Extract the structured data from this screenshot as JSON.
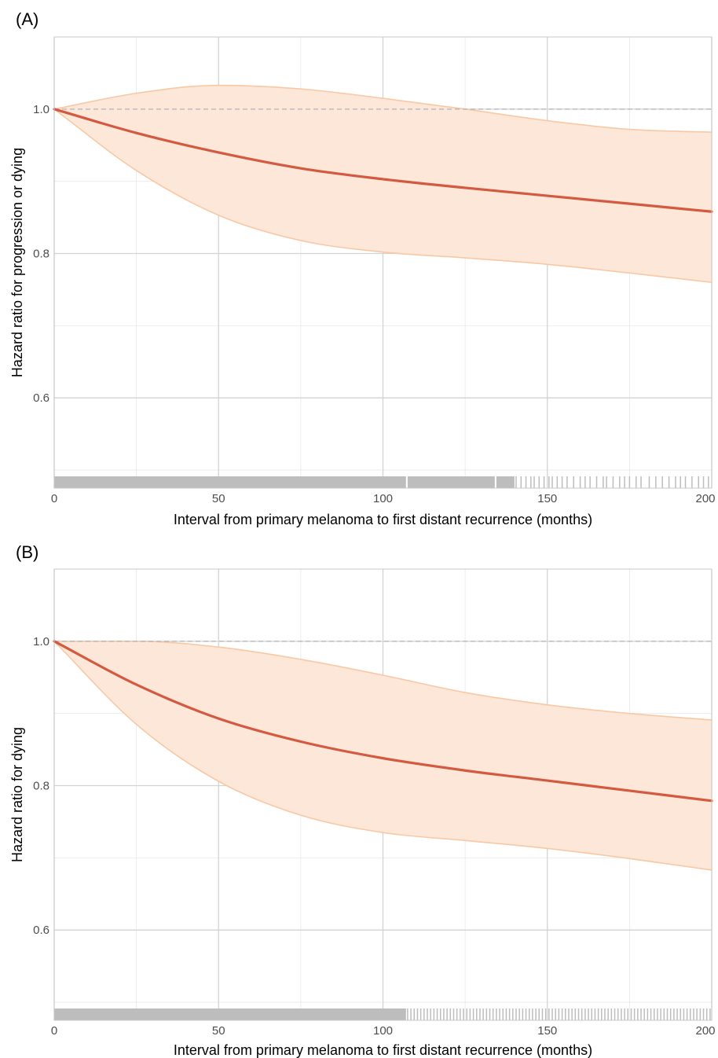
{
  "chart_data": [
    {
      "type": "line",
      "panel_label": "(A)",
      "xlabel": "Interval from primary melanoma to first distant recurrence (months)",
      "ylabel": "Hazard ratio for progression or dying",
      "xlim": [
        0,
        200
      ],
      "ylim": [
        0.475,
        1.1
      ],
      "xticks": [
        0,
        50,
        100,
        150,
        200
      ],
      "xtick_labels": [
        "0",
        "50",
        "100",
        "150",
        "200"
      ],
      "yticks": [
        0.6,
        0.8,
        1.0
      ],
      "ytick_labels": [
        "0.6",
        "0.8",
        "1.0"
      ],
      "grid": true,
      "reference_line": {
        "y": 1.0,
        "style": "dashed"
      },
      "x": [
        0,
        25,
        50,
        75,
        100,
        125,
        150,
        175,
        200
      ],
      "series": [
        {
          "role": "estimate",
          "values": [
            1.0,
            0.967,
            0.94,
            0.918,
            0.903,
            0.891,
            0.88,
            0.869,
            0.858
          ],
          "color": "#d35a40"
        },
        {
          "role": "upper",
          "values": [
            1.0,
            1.022,
            1.033,
            1.028,
            1.015,
            1.0,
            0.984,
            0.972,
            0.968
          ],
          "color": "#f8c8a4"
        },
        {
          "role": "lower",
          "values": [
            1.0,
            0.915,
            0.853,
            0.818,
            0.802,
            0.794,
            0.785,
            0.773,
            0.76
          ],
          "color": "#f8c8a4"
        }
      ],
      "band_color": "#fde7d9",
      "rug": {
        "color": "#bdbdbd",
        "dense_ranges": [
          [
            0,
            107
          ],
          [
            107.5,
            134
          ],
          [
            134.5,
            140
          ]
        ],
        "ticks": [
          140.5,
          142,
          143.5,
          145,
          146,
          147.5,
          149,
          150.5,
          151.5,
          153,
          154.5,
          156,
          158,
          160,
          161.5,
          163,
          165,
          167,
          168,
          170,
          172,
          173.5,
          175,
          177,
          178.5,
          181,
          183,
          185,
          187,
          189,
          190.5,
          192,
          194,
          196,
          197.5,
          199
        ]
      }
    },
    {
      "type": "line",
      "panel_label": "(B)",
      "xlabel": "Interval from primary melanoma to first distant recurrence (months)",
      "ylabel": "Hazard ratio for dying",
      "xlim": [
        0,
        200
      ],
      "ylim": [
        0.475,
        1.1
      ],
      "xticks": [
        0,
        50,
        100,
        150,
        200
      ],
      "xtick_labels": [
        "0",
        "50",
        "100",
        "150",
        "200"
      ],
      "yticks": [
        0.6,
        0.8,
        1.0
      ],
      "ytick_labels": [
        "0.6",
        "0.8",
        "1.0"
      ],
      "grid": true,
      "reference_line": {
        "y": 1.0,
        "style": "dashed"
      },
      "x": [
        0,
        25,
        50,
        75,
        100,
        125,
        150,
        175,
        200
      ],
      "series": [
        {
          "role": "estimate",
          "values": [
            1.0,
            0.94,
            0.893,
            0.861,
            0.838,
            0.821,
            0.807,
            0.793,
            0.779
          ],
          "color": "#d35a40"
        },
        {
          "role": "upper",
          "values": [
            1.0,
            1.0,
            0.992,
            0.975,
            0.953,
            0.929,
            0.912,
            0.9,
            0.891
          ],
          "color": "#f8c8a4"
        },
        {
          "role": "lower",
          "values": [
            1.0,
            0.885,
            0.806,
            0.759,
            0.735,
            0.724,
            0.713,
            0.699,
            0.683
          ],
          "color": "#f8c8a4"
        }
      ],
      "band_color": "#fde7d9",
      "rug": {
        "color": "#bdbdbd",
        "dense_ranges": [
          [
            0,
            107
          ]
        ],
        "ticks": [
          107.5,
          108.5,
          109.5,
          110.5,
          111.5,
          112.5,
          113.5,
          114.5,
          115.5,
          116.5,
          117.5,
          118.5,
          119.5,
          120.5,
          121.5,
          122.5,
          123.5,
          124.5,
          125.5,
          126.5,
          127.5,
          128.5,
          129.5,
          130.5,
          131.5,
          132.5,
          133.5,
          134.5,
          135.5,
          136.5,
          137.5,
          138.5,
          139.5,
          140.5,
          141.5,
          142.5,
          143.5,
          144.5,
          145.5,
          146.5,
          147.5,
          148.5,
          149.5,
          150.5,
          151.5,
          152.5,
          153.5,
          154.5,
          155.5,
          156.5,
          157.5,
          158.5,
          159.5,
          160.5,
          161.5,
          162.5,
          163.5,
          164.5,
          165.5,
          166.5,
          167.5,
          168.5,
          169.5,
          170.5,
          171.5,
          172.5,
          173.5,
          174.5,
          175.5,
          176.5,
          177.5,
          178.5,
          179.5,
          180.5,
          181.5,
          182.5,
          183.5,
          184.5,
          185.5,
          186.5,
          187.5,
          188.5,
          189.5,
          190.5,
          191.5,
          192.5,
          193.5,
          194.5,
          195.5,
          196.5,
          197.5,
          198.5,
          199.5
        ]
      }
    }
  ]
}
